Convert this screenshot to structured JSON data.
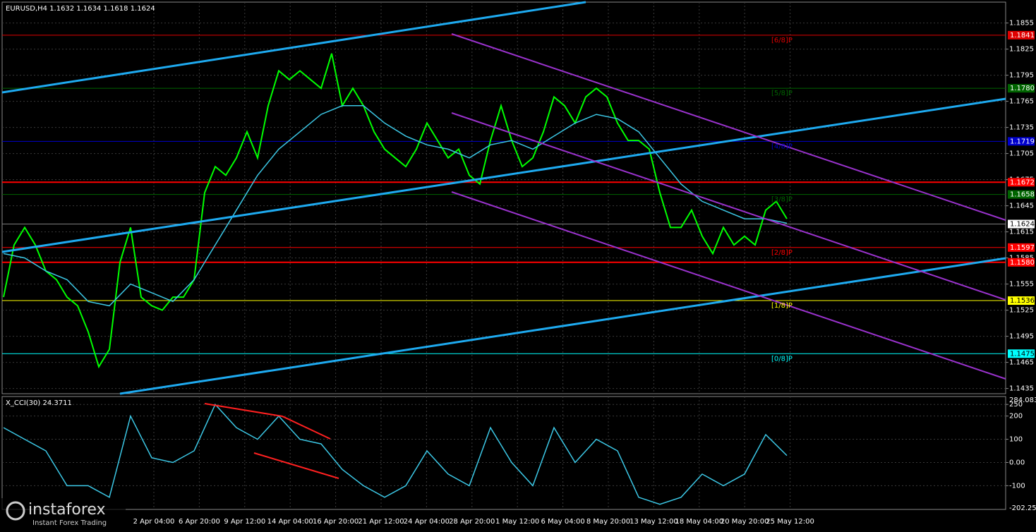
{
  "chart_data": [
    {
      "type": "line",
      "title": "EURUSD,H4  1.1632 1.1634 1.1618 1.1624",
      "x_labels": [
        "2 Apr 04:00",
        "6 Apr 20:00",
        "9 Apr 12:00",
        "14 Apr 04:00",
        "16 Apr 20:00",
        "21 Apr 12:00",
        "24 Apr 04:00",
        "28 Apr 20:00",
        "1 May 12:00",
        "6 May 04:00",
        "8 May 20:00",
        "13 May 12:00",
        "18 May 04:00",
        "20 May 20:00",
        "25 May 12:00"
      ],
      "ylim": [
        1.1429,
        1.1879
      ],
      "yticks": [
        1.1855,
        1.1825,
        1.1795,
        1.1765,
        1.1735,
        1.1705,
        1.1675,
        1.1645,
        1.1615,
        1.1585,
        1.1555,
        1.1525,
        1.1495,
        1.1465,
        1.1435
      ],
      "grid": true,
      "series": [
        {
          "color": "#00ff00",
          "values": [
            1.154,
            1.16,
            1.162,
            1.16,
            1.157,
            1.156,
            1.154,
            1.153,
            1.15,
            1.146,
            1.148,
            1.158,
            1.162,
            1.154,
            1.153,
            1.1525,
            1.154,
            1.154,
            1.156,
            1.166,
            1.169,
            1.168,
            1.17,
            1.173,
            1.17,
            1.176,
            1.18,
            1.179,
            1.18,
            1.179,
            1.178,
            1.182,
            1.176,
            1.178,
            1.176,
            1.173,
            1.171,
            1.17,
            1.169,
            1.171,
            1.174,
            1.172,
            1.17,
            1.171,
            1.168,
            1.167,
            1.172,
            1.176,
            1.172,
            1.169,
            1.17,
            1.173,
            1.177,
            1.176,
            1.174,
            1.177,
            1.178,
            1.177,
            1.174,
            1.172,
            1.172,
            1.171,
            1.166,
            1.162,
            1.162,
            1.164,
            1.161,
            1.159,
            1.162,
            1.16,
            1.161,
            1.16,
            1.164,
            1.165,
            1.163
          ]
        },
        {
          "color": "#3cc8e6",
          "values": [
            1.159,
            1.1585,
            1.157,
            1.156,
            1.1535,
            1.153,
            1.1555,
            1.1545,
            1.1535,
            1.156,
            1.16,
            1.164,
            1.168,
            1.171,
            1.173,
            1.175,
            1.176,
            1.176,
            1.174,
            1.1725,
            1.1715,
            1.171,
            1.17,
            1.1715,
            1.172,
            1.171,
            1.1725,
            1.174,
            1.175,
            1.1745,
            1.173,
            1.17,
            1.167,
            1.165,
            1.164,
            1.163,
            1.163,
            1.1625
          ]
        }
      ],
      "levels": [
        {
          "value": 1.1841,
          "color": "#e00000",
          "name": "[6/8]P"
        },
        {
          "value": 1.178,
          "value_label": "1.1780",
          "color": "#006400",
          "name": "[5/8]P"
        },
        {
          "value": 1.1719,
          "color": "#0000cd",
          "name": "[4/8]P"
        },
        {
          "value": 1.1672,
          "color": "#ff0000",
          "line": "thick"
        },
        {
          "value": 1.1658,
          "color": "#006400",
          "name": "[3/8]P"
        },
        {
          "value": 1.1624,
          "color": "#808080"
        },
        {
          "value": 1.1597,
          "color": "#ff0000",
          "name": "[2/8]P"
        },
        {
          "value": 1.158,
          "value_label": "1.1580",
          "color": "#ff0000",
          "line": "thick"
        },
        {
          "value": 1.1536,
          "color": "#ffff00",
          "name": "[1/8]P"
        },
        {
          "value": 1.1475,
          "color": "#00ffff",
          "name": "[0/8]P"
        }
      ]
    },
    {
      "type": "line",
      "title": "X_CCI(30) 24.3711",
      "ylim": [
        -202.256,
        284.0839
      ],
      "yticks": [
        250,
        200,
        100,
        {
          "value": 0,
          "label": "0.00"
        },
        -100
      ],
      "grid": true,
      "series": [
        {
          "color": "#3cc8e6",
          "values": [
            150,
            100,
            50,
            -100,
            -100,
            -150,
            200,
            20,
            0,
            50,
            250,
            150,
            100,
            200,
            100,
            80,
            -30,
            -100,
            -150,
            -100,
            50,
            -50,
            -100,
            150,
            0,
            -100,
            150,
            0,
            100,
            50,
            -150,
            -180,
            -150,
            -50,
            -100,
            -50,
            120,
            30
          ]
        }
      ]
    }
  ],
  "watermark": {
    "brand": "instaforex",
    "tagline": "Instant Forex Trading"
  }
}
